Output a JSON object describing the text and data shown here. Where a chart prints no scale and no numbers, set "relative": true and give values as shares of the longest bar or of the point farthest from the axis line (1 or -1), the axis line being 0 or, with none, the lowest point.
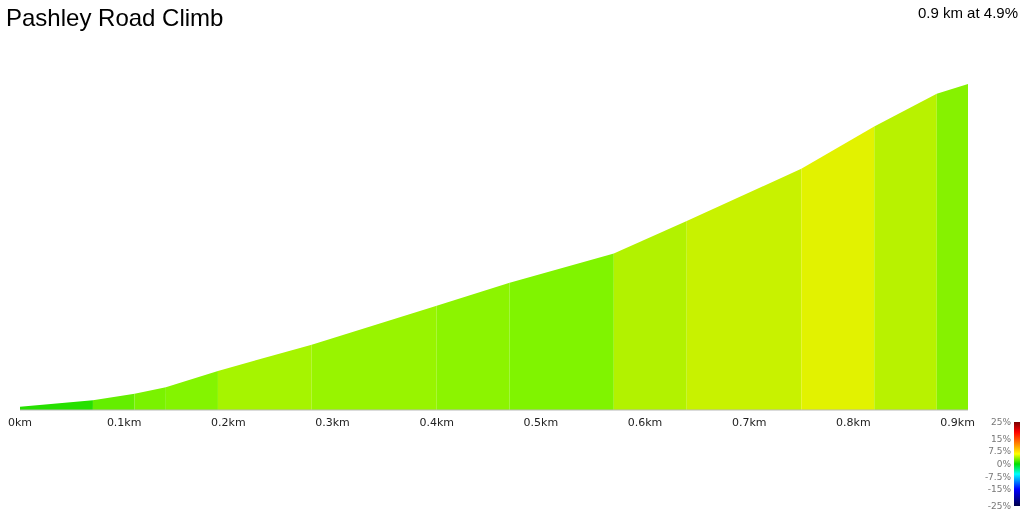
{
  "chart_data": {
    "type": "area",
    "title": "Pashley Road Climb",
    "subtitle": "0.9 km at 4.9%",
    "relative": true,
    "xlim": [
      0,
      0.91
    ],
    "xticks": [
      {
        "value": 0,
        "label": "0km"
      },
      {
        "value": 0.1,
        "label": "0.1km"
      },
      {
        "value": 0.2,
        "label": "0.2km"
      },
      {
        "value": 0.3,
        "label": "0.3km"
      },
      {
        "value": 0.4,
        "label": "0.4km"
      },
      {
        "value": 0.5,
        "label": "0.5km"
      },
      {
        "value": 0.6,
        "label": "0.6km"
      },
      {
        "value": 0.7,
        "label": "0.7km"
      },
      {
        "value": 0.8,
        "label": "0.8km"
      },
      {
        "value": 0.9,
        "label": "0.9km"
      }
    ],
    "series": [
      {
        "color": "#26e000",
        "x": [
          0,
          0.07
        ],
        "values": [
          0.01,
          0.03
        ]
      },
      {
        "color": "#64ee00",
        "x": [
          0.07,
          0.11
        ],
        "values": [
          0.03,
          0.05
        ]
      },
      {
        "color": "#7af200",
        "x": [
          0.11,
          0.14
        ],
        "values": [
          0.05,
          0.07
        ]
      },
      {
        "color": "#84f400",
        "x": [
          0.14,
          0.19
        ],
        "values": [
          0.07,
          0.12
        ]
      },
      {
        "color": "#a6f400",
        "x": [
          0.19,
          0.28
        ],
        "values": [
          0.12,
          0.2
        ]
      },
      {
        "color": "#98f400",
        "x": [
          0.28,
          0.4
        ],
        "values": [
          0.2,
          0.32
        ]
      },
      {
        "color": "#8cf400",
        "x": [
          0.4,
          0.47
        ],
        "values": [
          0.32,
          0.39
        ]
      },
      {
        "color": "#80f400",
        "x": [
          0.47,
          0.57
        ],
        "values": [
          0.39,
          0.48
        ]
      },
      {
        "color": "#b2f200",
        "x": [
          0.57,
          0.64
        ],
        "values": [
          0.48,
          0.58
        ]
      },
      {
        "color": "#c8f200",
        "x": [
          0.64,
          0.75
        ],
        "values": [
          0.58,
          0.74
        ]
      },
      {
        "color": "#e2f200",
        "x": [
          0.75,
          0.82
        ],
        "values": [
          0.74,
          0.87
        ]
      },
      {
        "color": "#b8f200",
        "x": [
          0.82,
          0.88
        ],
        "values": [
          0.87,
          0.97
        ]
      },
      {
        "color": "#86f200",
        "x": [
          0.88,
          0.91
        ],
        "values": [
          0.97,
          1
        ]
      }
    ],
    "clim": [
      -25,
      25
    ],
    "cticks": [
      {
        "value": 25,
        "label": "25%"
      },
      {
        "value": 15,
        "label": "15%"
      },
      {
        "value": 7.5,
        "label": "7.5%"
      },
      {
        "value": 0,
        "label": "0%"
      },
      {
        "value": -7.5,
        "label": "-7.5%"
      },
      {
        "value": -15,
        "label": "-15%"
      },
      {
        "value": -25,
        "label": "-25%"
      }
    ]
  }
}
